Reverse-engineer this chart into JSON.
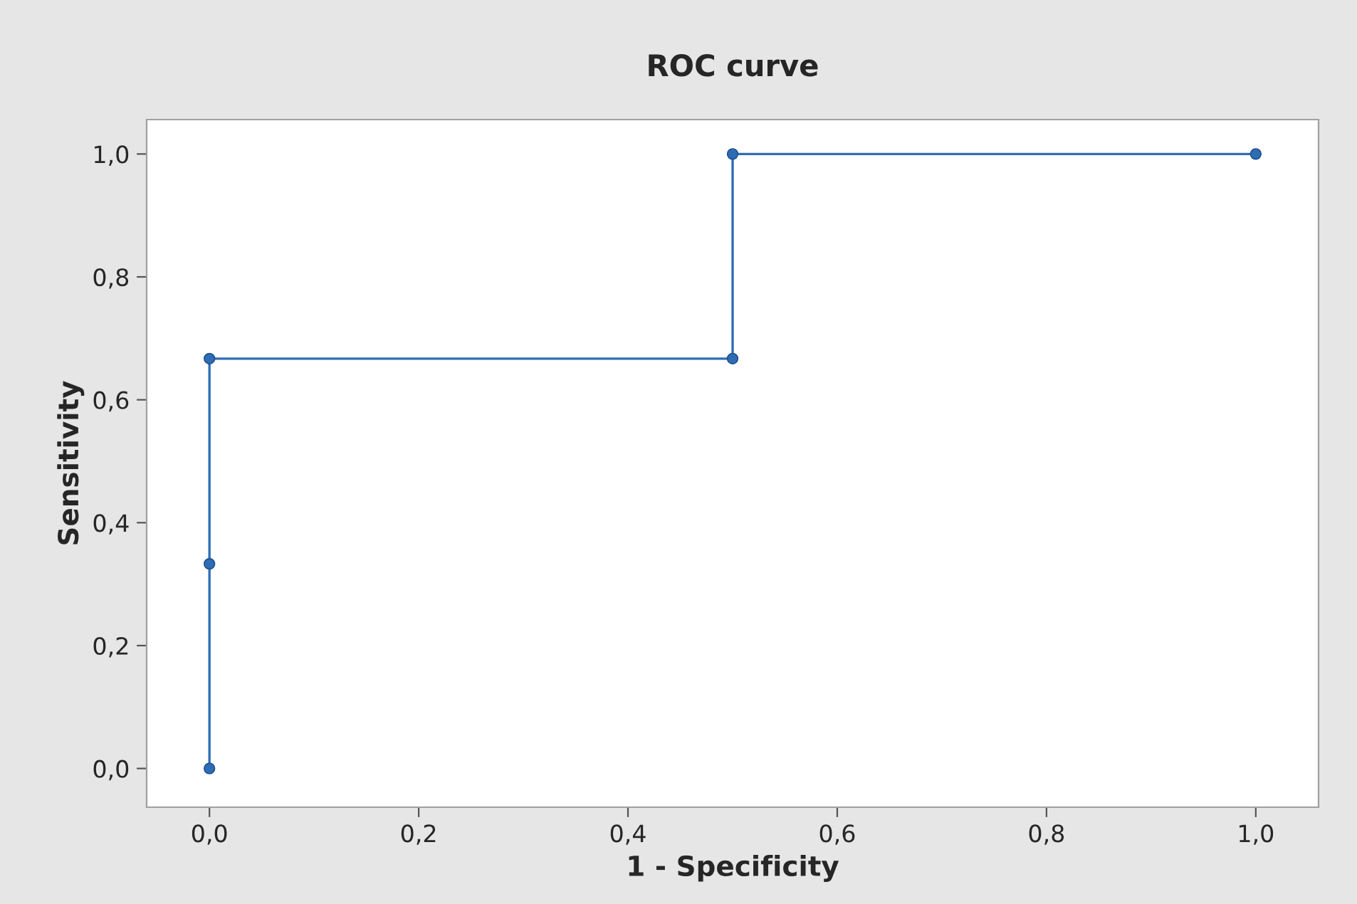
{
  "chart_data": {
    "type": "line",
    "title": "ROC curve",
    "xlabel": "1 - Specificity",
    "ylabel": "Sensitivity",
    "x": [
      0,
      0,
      0,
      0.5,
      0.5,
      1
    ],
    "series": [
      {
        "color": "#2e6db4",
        "values": [
          0,
          0.333,
          0.667,
          0.667,
          1,
          1
        ]
      }
    ],
    "marker": "circle",
    "line_style": "solid",
    "grid": false,
    "xlim": [
      -0.06,
      1.06
    ],
    "ylim": [
      -0.063,
      1.056
    ],
    "xticks": [
      {
        "value": 0,
        "label": "0,0"
      },
      {
        "value": 0.2,
        "label": "0,2"
      },
      {
        "value": 0.4,
        "label": "0,4"
      },
      {
        "value": 0.6,
        "label": "0,6"
      },
      {
        "value": 0.8,
        "label": "0,8"
      },
      {
        "value": 1,
        "label": "1,0"
      }
    ],
    "yticks": [
      {
        "value": 0,
        "label": "0,0"
      },
      {
        "value": 0.2,
        "label": "0,2"
      },
      {
        "value": 0.4,
        "label": "0,4"
      },
      {
        "value": 0.6,
        "label": "0,6"
      },
      {
        "value": 0.8,
        "label": "0,8"
      },
      {
        "value": 1,
        "label": "1,0"
      }
    ]
  }
}
